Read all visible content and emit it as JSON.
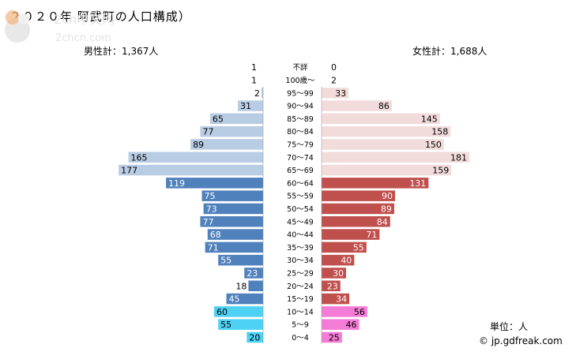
{
  "title": "２０２０年 阿武町の人口構成）",
  "male_total": "男性計：1,367人",
  "female_total": "女性計：1,688人",
  "unit": "単位：人",
  "credit": "© jp.gdfreak.com",
  "colors": {
    "male_old": "#b8cce4",
    "male_working": "#4f81bd",
    "male_young": "#4dd2f5",
    "female_old": "#f2dcdb",
    "female_working": "#c0504d",
    "female_young": "#f47bd6",
    "plain_row_line": "#9e9e9e"
  },
  "chart_data": {
    "type": "bar",
    "orientation": "horizontal-pyramid",
    "categories": [
      "不詳",
      "100歳～",
      "95～99",
      "90～94",
      "85～89",
      "80～84",
      "75～79",
      "70～74",
      "65～69",
      "60～64",
      "55～59",
      "50～54",
      "45～49",
      "40～44",
      "35～39",
      "30～34",
      "25～29",
      "20～24",
      "15～19",
      "10～14",
      "5～9",
      "0～4"
    ],
    "series": [
      {
        "name": "男性",
        "values": [
          1,
          1,
          2,
          31,
          65,
          77,
          89,
          165,
          177,
          119,
          75,
          73,
          77,
          68,
          71,
          55,
          23,
          18,
          45,
          60,
          55,
          20
        ]
      },
      {
        "name": "女性",
        "values": [
          0,
          2,
          33,
          86,
          145,
          158,
          150,
          181,
          159,
          131,
          90,
          89,
          84,
          71,
          55,
          40,
          30,
          23,
          34,
          56,
          46,
          25
        ]
      }
    ],
    "groups": [
      "plain",
      "plain",
      "old",
      "old",
      "old",
      "old",
      "old",
      "old",
      "old",
      "working",
      "working",
      "working",
      "working",
      "working",
      "working",
      "working",
      "working",
      "working",
      "working",
      "young",
      "young",
      "young"
    ],
    "xlim": [
      0,
      200
    ],
    "grid": false,
    "legend": "none"
  }
}
